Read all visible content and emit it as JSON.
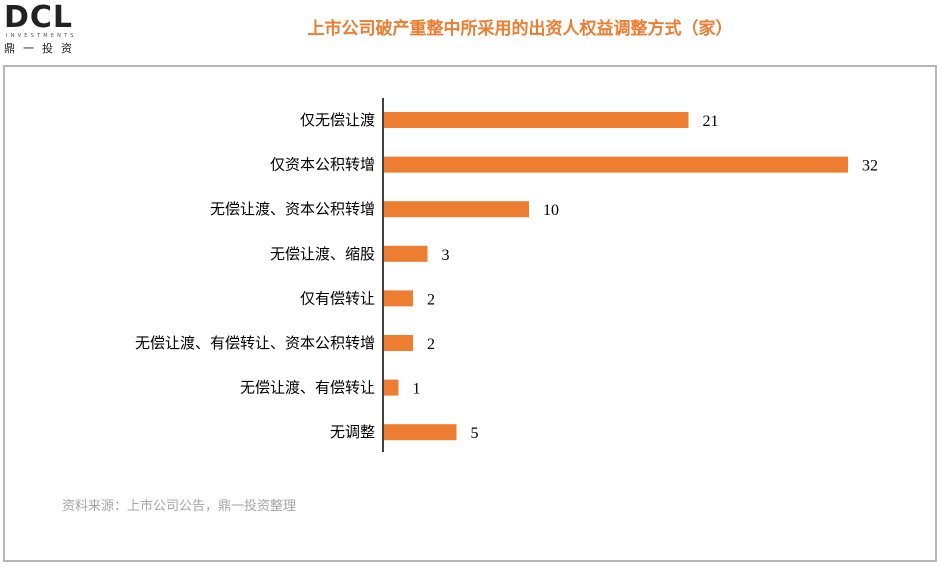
{
  "logo": {
    "mark": "DCL",
    "sub": "INVESTMENTS",
    "cn": "鼎一投资"
  },
  "title": "上市公司破产重整中所采用的出资人权益调整方式（家）",
  "source": "资料来源：上市公司公告，鼎一投资整理",
  "colors": {
    "bar": "#ED7D31",
    "title": "#ED7D31",
    "axis": "#000000"
  },
  "chart_data": {
    "type": "bar",
    "orientation": "horizontal",
    "title": "上市公司破产重整中所采用的出资人权益调整方式（家）",
    "categories": [
      "仅无偿让渡",
      "仅资本公积转增",
      "无偿让渡、资本公积转增",
      "无偿让渡、缩股",
      "仅有偿转让",
      "无偿让渡、有偿转让、资本公积转增",
      "无偿让渡、有偿转让",
      "无调整"
    ],
    "values": [
      21,
      32,
      10,
      3,
      2,
      2,
      1,
      5
    ],
    "xlim": [
      0,
      32
    ],
    "grid": false,
    "legend": "none"
  }
}
